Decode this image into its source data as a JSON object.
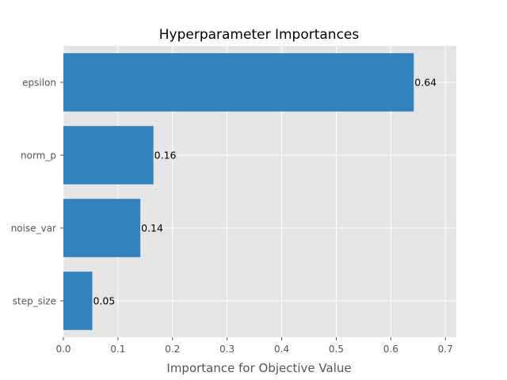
{
  "chart_data": {
    "type": "bar",
    "orientation": "horizontal",
    "title": "Hyperparameter Importances",
    "xlabel": "Importance for Objective Value",
    "ylabel": "",
    "categories": [
      "epsilon",
      "norm_p",
      "noise_var",
      "step_size"
    ],
    "values": [
      0.642,
      0.165,
      0.141,
      0.053
    ],
    "value_labels": [
      "0.64",
      "0.16",
      "0.14",
      "0.05"
    ],
    "xlim": [
      0,
      0.72
    ],
    "xticks": [
      0.0,
      0.1,
      0.2,
      0.3,
      0.4,
      0.5,
      0.6,
      0.7
    ],
    "xtick_labels": [
      "0.0",
      "0.1",
      "0.2",
      "0.3",
      "0.4",
      "0.5",
      "0.6",
      "0.7"
    ],
    "grid": true,
    "bar_color": "#3182bd",
    "plot_background": "#e5e5e5",
    "grid_color": "#ffffff"
  }
}
